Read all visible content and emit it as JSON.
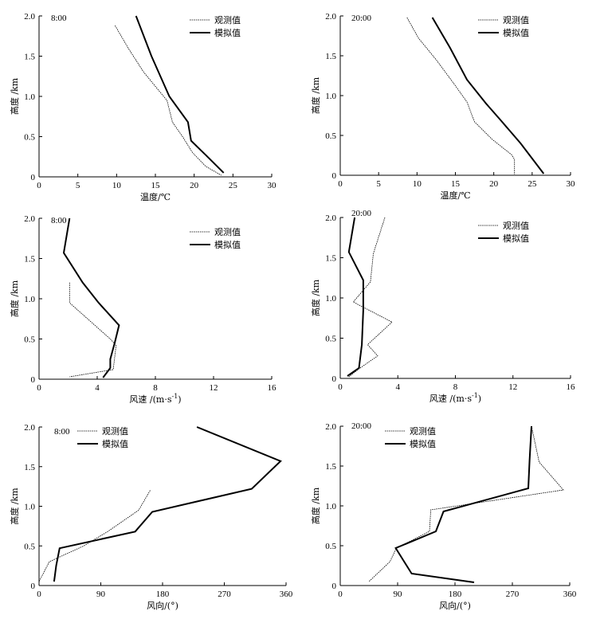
{
  "chart_data": [
    {
      "type": "line",
      "time_label": "8:00",
      "xlabel": "温度/℃",
      "ylabel": "高度 /km",
      "xlim": [
        0,
        30
      ],
      "ylim": [
        0,
        2.0
      ],
      "xticks": [
        "0",
        "5",
        "10",
        "15",
        "20",
        "25",
        "30"
      ],
      "yticks": [
        "0",
        "0.5",
        "1.0",
        "1.5",
        "2.0"
      ],
      "legend": "top-right",
      "series": [
        {
          "name": "观测值",
          "style": "dotted",
          "points": [
            [
              9.8,
              1.88
            ],
            [
              11.5,
              1.6
            ],
            [
              13.5,
              1.3
            ],
            [
              16.5,
              0.95
            ],
            [
              17.2,
              0.68
            ],
            [
              18.5,
              0.5
            ],
            [
              19.8,
              0.3
            ],
            [
              21.5,
              0.13
            ],
            [
              23.5,
              0.02
            ]
          ]
        },
        {
          "name": "模拟值",
          "style": "solid",
          "points": [
            [
              12.5,
              2.0
            ],
            [
              14.5,
              1.5
            ],
            [
              16.8,
              1.0
            ],
            [
              19.2,
              0.68
            ],
            [
              19.6,
              0.45
            ],
            [
              21.5,
              0.27
            ],
            [
              23.8,
              0.05
            ]
          ]
        }
      ]
    },
    {
      "type": "line",
      "time_label": "20:00",
      "xlabel": "温度/℃",
      "ylabel": "高度 /km",
      "xlim": [
        0,
        30
      ],
      "ylim": [
        0,
        2.0
      ],
      "xticks": [
        "0",
        "5",
        "10",
        "15",
        "20",
        "25",
        "30"
      ],
      "yticks": [
        "0",
        "0.5",
        "1.0",
        "1.5",
        "2.0"
      ],
      "legend": "top-right",
      "series": [
        {
          "name": "观测值",
          "style": "dotted",
          "points": [
            [
              8.7,
              1.98
            ],
            [
              10.2,
              1.72
            ],
            [
              12.5,
              1.45
            ],
            [
              14.8,
              1.15
            ],
            [
              16.5,
              0.92
            ],
            [
              17.5,
              0.67
            ],
            [
              19.8,
              0.45
            ],
            [
              22.3,
              0.26
            ],
            [
              22.7,
              0.2
            ],
            [
              22.7,
              0.01
            ]
          ]
        },
        {
          "name": "模拟值",
          "style": "solid",
          "points": [
            [
              12.0,
              1.98
            ],
            [
              14.3,
              1.6
            ],
            [
              16.5,
              1.2
            ],
            [
              19.0,
              0.9
            ],
            [
              21.0,
              0.68
            ],
            [
              23.5,
              0.4
            ],
            [
              26.5,
              0.02
            ]
          ]
        }
      ]
    },
    {
      "type": "line",
      "time_label": "8:00",
      "xlabel": "风速 /(m·s",
      "xlabel_sup": "-1",
      "xlabel_end": ")",
      "ylabel": "高度 /km",
      "xlim": [
        0,
        16
      ],
      "ylim": [
        0,
        2.0
      ],
      "xticks": [
        "0",
        "4",
        "8",
        "12",
        "16"
      ],
      "yticks": [
        "0",
        "0.5",
        "1.0",
        "1.5",
        "2.0"
      ],
      "legend": "top-right",
      "series": [
        {
          "name": "观测值",
          "style": "dotted",
          "points": [
            [
              2.1,
              1.2
            ],
            [
              2.1,
              0.95
            ],
            [
              4.9,
              0.5
            ],
            [
              5.3,
              0.42
            ],
            [
              5.1,
              0.12
            ],
            [
              2.1,
              0.03
            ]
          ]
        },
        {
          "name": "模拟值",
          "style": "solid",
          "points": [
            [
              2.1,
              2.0
            ],
            [
              1.7,
              1.57
            ],
            [
              3.0,
              1.2
            ],
            [
              4.1,
              0.95
            ],
            [
              5.5,
              0.67
            ],
            [
              5.2,
              0.45
            ],
            [
              4.9,
              0.25
            ],
            [
              4.9,
              0.14
            ],
            [
              4.4,
              0.02
            ]
          ]
        }
      ]
    },
    {
      "type": "line",
      "time_label": "20:00",
      "xlabel": "风速 /(m·s",
      "xlabel_sup": "-1",
      "xlabel_end": ")",
      "ylabel": "高度 /km",
      "xlim": [
        0,
        16
      ],
      "ylim": [
        0,
        2.0
      ],
      "xticks": [
        "0",
        "4",
        "8",
        "12",
        "16"
      ],
      "yticks": [
        "0",
        "0.5",
        "1.0",
        "1.5",
        "2.0"
      ],
      "legend": "top-right",
      "series": [
        {
          "name": "观测值",
          "style": "dotted",
          "points": [
            [
              3.1,
              2.0
            ],
            [
              2.3,
              1.55
            ],
            [
              2.1,
              1.2
            ],
            [
              0.9,
              0.95
            ],
            [
              3.6,
              0.7
            ],
            [
              1.9,
              0.42
            ],
            [
              2.6,
              0.28
            ],
            [
              1.3,
              0.12
            ],
            [
              0.6,
              0.02
            ]
          ]
        },
        {
          "name": "模拟值",
          "style": "solid",
          "points": [
            [
              1.0,
              2.0
            ],
            [
              0.6,
              1.57
            ],
            [
              1.6,
              1.22
            ],
            [
              1.6,
              0.85
            ],
            [
              1.5,
              0.42
            ],
            [
              1.3,
              0.13
            ],
            [
              0.5,
              0.03
            ]
          ]
        }
      ]
    },
    {
      "type": "line",
      "time_label": "8:00",
      "xlabel": "风向/(°)",
      "ylabel": "高度 /km",
      "xlim": [
        0,
        360
      ],
      "ylim": [
        0,
        2.0
      ],
      "xticks": [
        "0",
        "90",
        "180",
        "270",
        "360"
      ],
      "yticks": [
        "0",
        "0.5",
        "1.0",
        "1.5",
        "2.0"
      ],
      "legend": "top-left",
      "series": [
        {
          "name": "观测值",
          "style": "dotted",
          "points": [
            [
              162,
              1.2
            ],
            [
              145,
              0.95
            ],
            [
              100,
              0.68
            ],
            [
              65,
              0.5
            ],
            [
              40,
              0.4
            ],
            [
              15,
              0.3
            ],
            [
              3,
              0.1
            ],
            [
              0,
              0.05
            ]
          ]
        },
        {
          "name": "模拟值",
          "style": "solid",
          "points": [
            [
              230,
              2.0
            ],
            [
              352,
              1.57
            ],
            [
              310,
              1.22
            ],
            [
              165,
              0.93
            ],
            [
              140,
              0.68
            ],
            [
              30,
              0.47
            ],
            [
              25,
              0.25
            ],
            [
              22,
              0.05
            ]
          ]
        }
      ]
    },
    {
      "type": "line",
      "time_label": "20:00",
      "xlabel": "风向/(°)",
      "ylabel": "高度 /km",
      "xlim": [
        0,
        360
      ],
      "ylim": [
        0,
        2.0
      ],
      "xticks": [
        "0",
        "90",
        "180",
        "270",
        "360"
      ],
      "yticks": [
        "0",
        "0.5",
        "1.0",
        "1.5",
        "2.0"
      ],
      "legend": "top-left",
      "series": [
        {
          "name": "观测值",
          "style": "dotted",
          "points": [
            [
              300,
              2.0
            ],
            [
              312,
              1.55
            ],
            [
              350,
              1.2
            ],
            [
              142,
              0.95
            ],
            [
              140,
              0.68
            ],
            [
              88,
              0.47
            ],
            [
              78,
              0.3
            ],
            [
              45,
              0.05
            ]
          ]
        },
        {
          "name": "模拟值",
          "style": "solid",
          "points": [
            [
              300,
              2.0
            ],
            [
              297,
              1.57
            ],
            [
              295,
              1.22
            ],
            [
              162,
              0.93
            ],
            [
              150,
              0.68
            ],
            [
              87,
              0.47
            ],
            [
              112,
              0.15
            ],
            [
              210,
              0.04
            ]
          ]
        }
      ]
    }
  ]
}
